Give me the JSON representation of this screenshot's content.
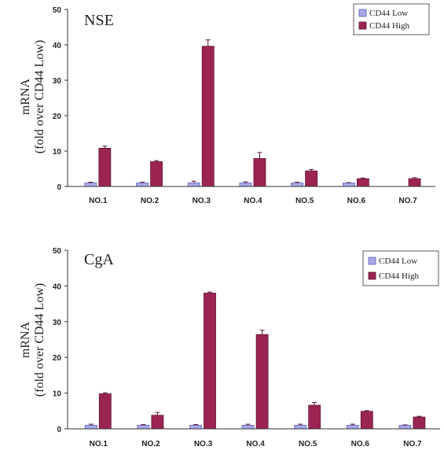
{
  "colors": {
    "low_fill": "#a7a9e8",
    "low_stroke": "#5f62b8",
    "high_fill": "#9b2453",
    "high_stroke": "#5e1232",
    "axis": "#333333"
  },
  "ylabel_line1": "mRNA",
  "ylabel_line2": "(fold over CD44 Low)",
  "chart_data": [
    {
      "type": "bar",
      "title": "NSE",
      "categories": [
        "NO.1",
        "NO.2",
        "NO.3",
        "NO.4",
        "NO.5",
        "NO.6",
        "NO.7"
      ],
      "ylim": [
        0,
        50
      ],
      "yticks": [
        0,
        10,
        20,
        30,
        40,
        50
      ],
      "legend": "top-right",
      "series": [
        {
          "name": "CD44 Low",
          "values": [
            1,
            1,
            1,
            1,
            1,
            1,
            0
          ],
          "errors": [
            0.2,
            0.2,
            0.5,
            0.3,
            0.2,
            0.1,
            0
          ]
        },
        {
          "name": "CD44 High",
          "values": [
            10.8,
            7.0,
            39.6,
            7.9,
            4.4,
            2.2,
            2.2
          ],
          "errors": [
            0.6,
            0.3,
            1.8,
            1.7,
            0.4,
            0.2,
            0.3
          ]
        }
      ]
    },
    {
      "type": "bar",
      "title": "CgA",
      "categories": [
        "NO.1",
        "NO.2",
        "NO.3",
        "NO.4",
        "NO.5",
        "NO.6",
        "NO.7"
      ],
      "ylim": [
        0,
        50
      ],
      "yticks": [
        0,
        10,
        20,
        30,
        40,
        50
      ],
      "legend": "top-right",
      "series": [
        {
          "name": "CD44 Low",
          "values": [
            1,
            1,
            1,
            1,
            1,
            1,
            1
          ],
          "errors": [
            0.3,
            0.2,
            0.2,
            0.3,
            0.3,
            0.3,
            0.1
          ]
        },
        {
          "name": "CD44 High",
          "values": [
            9.8,
            3.8,
            38.0,
            26.4,
            6.6,
            4.9,
            3.3
          ],
          "errors": [
            0.3,
            0.8,
            0.3,
            1.2,
            0.8,
            0.2,
            0.2
          ]
        }
      ]
    }
  ]
}
